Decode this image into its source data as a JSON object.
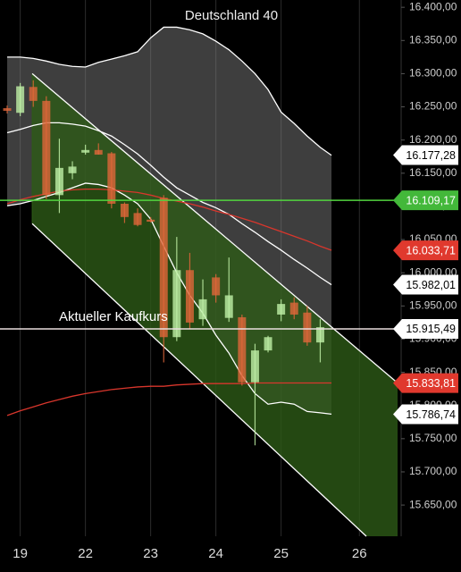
{
  "chart_data": {
    "type": "candlestick",
    "title": "Deutschland 40",
    "xlim": [
      -0.55,
      30.27
    ],
    "ylim": [
      15603,
      16411
    ],
    "xticks": [
      {
        "value": 1,
        "label": "19"
      },
      {
        "value": 6,
        "label": "22"
      },
      {
        "value": 11,
        "label": "23"
      },
      {
        "value": 16,
        "label": "24"
      },
      {
        "value": 21,
        "label": "25"
      },
      {
        "value": 27,
        "label": "26"
      }
    ],
    "yticks": [
      {
        "value": 16400,
        "label": "16.400,00"
      },
      {
        "value": 16350,
        "label": "16.350,00"
      },
      {
        "value": 16300,
        "label": "16.300,00"
      },
      {
        "value": 16250,
        "label": "16.250,00"
      },
      {
        "value": 16200,
        "label": "16.200,00"
      },
      {
        "value": 16150,
        "label": "16.150,00"
      },
      {
        "value": 16100,
        "label": "16.100,00"
      },
      {
        "value": 16050,
        "label": "16.050,00"
      },
      {
        "value": 16000,
        "label": "16.000,00"
      },
      {
        "value": 15950,
        "label": "15.950,00"
      },
      {
        "value": 15900,
        "label": "15.900,00"
      },
      {
        "value": 15850,
        "label": "15.850,00"
      },
      {
        "value": 15800,
        "label": "15.800,00"
      },
      {
        "value": 15750,
        "label": "15.750,00"
      },
      {
        "value": 15700,
        "label": "15.700,00"
      },
      {
        "value": 15650,
        "label": "15.650,00"
      }
    ],
    "grid": true,
    "up_color": "#bff0a6",
    "down_color": "#e0663a",
    "x": [
      0,
      1,
      2,
      3,
      4,
      5,
      6,
      7,
      8,
      9,
      10,
      11,
      12,
      13,
      14,
      15,
      16,
      17,
      18,
      19,
      20,
      21,
      22,
      23,
      24
    ],
    "open": [
      16248,
      16241,
      16280,
      16259,
      16117,
      16150,
      16181,
      16185,
      16180,
      16104,
      16090,
      16080,
      16113,
      15903,
      16004,
      15930,
      15993,
      15932,
      15933,
      15835,
      15883,
      15937,
      15955,
      15940,
      15895
    ],
    "high": [
      16252,
      16286,
      16290,
      16266,
      16202,
      16168,
      16193,
      16195,
      16182,
      16106,
      16097,
      16084,
      16117,
      16054,
      16030,
      15990,
      15998,
      16023,
      15937,
      15893,
      15905,
      15960,
      15963,
      15950,
      15930
    ],
    "low": [
      16240,
      16236,
      16250,
      16111,
      16090,
      16141,
      16178,
      16178,
      16097,
      16075,
      16070,
      16076,
      15865,
      15897,
      15915,
      15920,
      15955,
      15926,
      15830,
      15740,
      15880,
      15927,
      15930,
      15890,
      15865
    ],
    "close": [
      16244,
      16281,
      16259,
      16117,
      16158,
      16160,
      16185,
      16178,
      16104,
      16084,
      16072,
      16077,
      15903,
      16004,
      15925,
      15960,
      15966,
      15966,
      15835,
      15883,
      15903,
      15953,
      15937,
      15895,
      15918
    ],
    "line_x": [
      0,
      1,
      2,
      3,
      4,
      5,
      6,
      7,
      8,
      9,
      10,
      11,
      12,
      13,
      14,
      15,
      16,
      17,
      18,
      19,
      20,
      21,
      22,
      23,
      24,
      24.86
    ],
    "band_fill": "#8a8a8a",
    "bands": {
      "color": "#ffffff",
      "upper": [
        16325,
        16325,
        16323,
        16319,
        16314,
        16311,
        16310,
        16317,
        16322,
        16327,
        16333,
        16354,
        16370,
        16370,
        16366,
        16360,
        16349,
        16336,
        16319,
        16300,
        16276,
        16242,
        16225,
        16206,
        16189,
        16177
      ],
      "middle": [
        16211,
        16216,
        16222,
        16226,
        16226,
        16224,
        16221,
        16214,
        16206,
        16193,
        16179,
        16162,
        16144,
        16128,
        16117,
        16106,
        16098,
        16088,
        16074,
        16061,
        16047,
        16034,
        16020,
        16007,
        15993,
        15982
      ],
      "lower": [
        16101,
        16104,
        16109,
        16115,
        16121,
        16128,
        16135,
        16133,
        16128,
        16117,
        16104,
        16081,
        16040,
        16000,
        15966,
        15939,
        15906,
        15879,
        15845,
        15818,
        15802,
        15805,
        15802,
        15791,
        15789,
        15787
      ]
    },
    "averages": [
      {
        "color": "#d8362c",
        "values": [
          16104,
          16110,
          16115,
          16119,
          16123,
          16125,
          16126,
          16126,
          16125,
          16123,
          16121,
          16117,
          16112,
          16108,
          16104,
          16099,
          16093,
          16088,
          16082,
          16076,
          16069,
          16062,
          16055,
          16048,
          16040,
          16034
        ]
      },
      {
        "color": "#d8362c",
        "values": [
          15785,
          15792,
          15798,
          15804,
          15809,
          15814,
          15818,
          15821,
          15824,
          15826,
          15828,
          15829,
          15829,
          15831,
          15832,
          15833,
          15833,
          15833,
          15833,
          15834,
          15834,
          15834,
          15834,
          15834,
          15834,
          15834
        ]
      }
    ],
    "channel": {
      "fill": "#2d5a17",
      "color": "#ffffff",
      "upper": {
        "x": [
          1.92,
          29.93
        ],
        "values": [
          16300,
          15834
        ]
      },
      "lower": {
        "x": [
          1.92,
          27.53
        ],
        "values": [
          16074,
          15603
        ]
      }
    },
    "levels": [
      {
        "value": 16109.17,
        "color": "#52d43f"
      },
      {
        "value": 15915.49,
        "color": "#e9dede",
        "label": "Aktueller Kaufkurs"
      }
    ],
    "price_flags": [
      {
        "value": 16177.28,
        "label": "16.177,28",
        "bg": "#ffffff",
        "fg": "#000000"
      },
      {
        "value": 16109.17,
        "label": "16.109,17",
        "bg": "#43b83a",
        "fg": "#ffffff"
      },
      {
        "value": 16033.71,
        "label": "16.033,71",
        "bg": "#e0392e",
        "fg": "#ffffff"
      },
      {
        "value": 15982.01,
        "label": "15.982,01",
        "bg": "#ffffff",
        "fg": "#000000"
      },
      {
        "value": 15915.49,
        "label": "15.915,49",
        "bg": "#ffffff",
        "fg": "#000000"
      },
      {
        "value": 15833.81,
        "label": "15.833,81",
        "bg": "#e0392e",
        "fg": "#ffffff"
      },
      {
        "value": 15786.74,
        "label": "15.786,74",
        "bg": "#ffffff",
        "fg": "#000000"
      }
    ]
  }
}
